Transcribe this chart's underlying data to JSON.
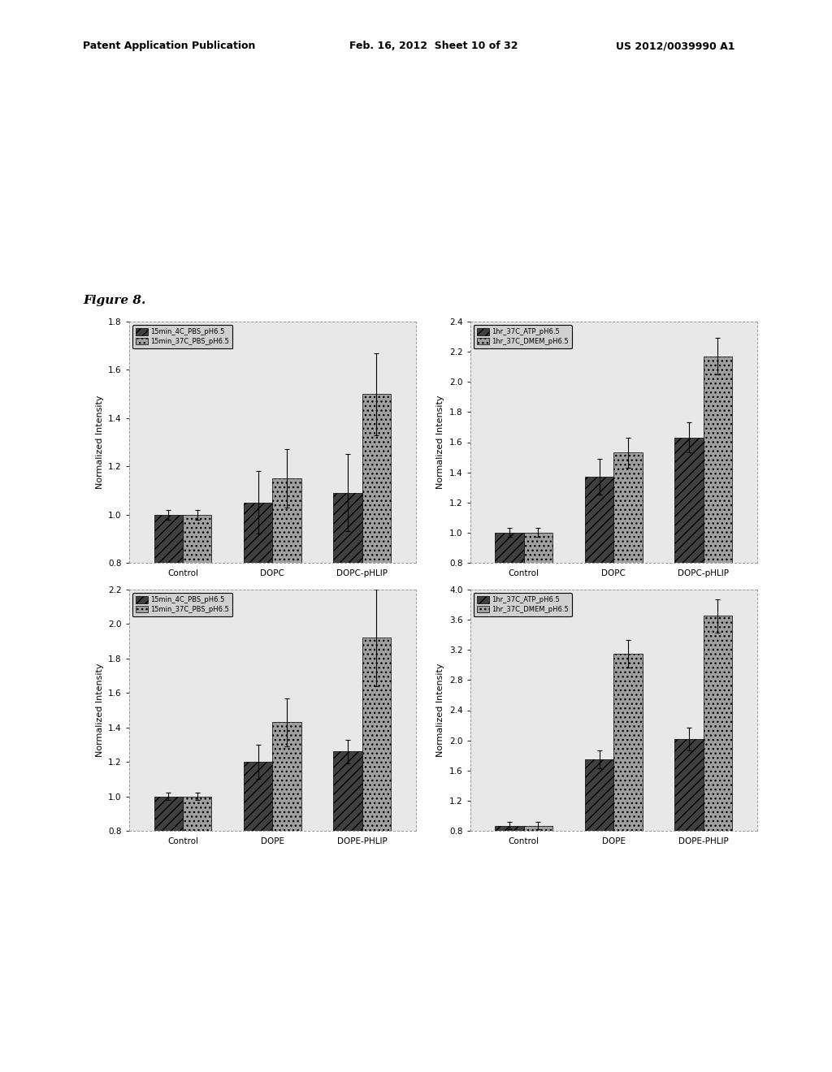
{
  "background_color": "#ffffff",
  "header_left": "Patent Application Publication",
  "header_mid": "Feb. 16, 2012  Sheet 10 of 32",
  "header_right": "US 2012/0039990 A1",
  "figure_label": "Figure 8.",
  "plots": [
    {
      "id": "top_left",
      "categories": [
        "Control",
        "DOPC",
        "DOPC-pHLIP"
      ],
      "series": [
        {
          "label": "15min_4C_PBS_pH6.5",
          "color": "#404040",
          "hatch": "///",
          "values": [
            1.0,
            1.05,
            1.09
          ],
          "errors": [
            0.02,
            0.13,
            0.16
          ]
        },
        {
          "label": "15min_37C_PBS_pH6.5",
          "color": "#a0a0a0",
          "hatch": "...",
          "values": [
            1.0,
            1.15,
            1.5
          ],
          "errors": [
            0.02,
            0.12,
            0.17
          ]
        }
      ],
      "ylabel": "Normalized Intensity",
      "ylim": [
        0.8,
        1.8
      ],
      "yticks": [
        0.8,
        1.0,
        1.2,
        1.4,
        1.6,
        1.8
      ]
    },
    {
      "id": "top_right",
      "categories": [
        "Control",
        "DOPC",
        "DOPC-pHLIP"
      ],
      "series": [
        {
          "label": "1hr_37C_ATP_pH6.5",
          "color": "#404040",
          "hatch": "///",
          "values": [
            1.0,
            1.37,
            1.63
          ],
          "errors": [
            0.03,
            0.12,
            0.1
          ]
        },
        {
          "label": "1hr_37C_DMEM_pH6.5",
          "color": "#a0a0a0",
          "hatch": "...",
          "values": [
            1.0,
            1.53,
            2.17
          ],
          "errors": [
            0.03,
            0.1,
            0.12
          ]
        }
      ],
      "ylabel": "Normalized Intensity",
      "ylim": [
        0.8,
        2.4
      ],
      "yticks": [
        0.8,
        1.0,
        1.2,
        1.4,
        1.6,
        1.8,
        2.0,
        2.2,
        2.4
      ]
    },
    {
      "id": "bottom_left",
      "categories": [
        "Control",
        "DOPE",
        "DOPE-PHLIP"
      ],
      "series": [
        {
          "label": "15min_4C_PBS_pH6.5",
          "color": "#404040",
          "hatch": "///",
          "values": [
            1.0,
            1.2,
            1.26
          ],
          "errors": [
            0.02,
            0.1,
            0.07
          ]
        },
        {
          "label": "15min_37C_PBS_pH6.5",
          "color": "#a0a0a0",
          "hatch": "...",
          "values": [
            1.0,
            1.43,
            1.92
          ],
          "errors": [
            0.02,
            0.14,
            0.28
          ]
        }
      ],
      "ylabel": "Normalized Intensity",
      "ylim": [
        0.8,
        2.2
      ],
      "yticks": [
        0.8,
        1.0,
        1.2,
        1.4,
        1.6,
        1.8,
        2.0,
        2.2
      ]
    },
    {
      "id": "bottom_right",
      "categories": [
        "Control",
        "DOPE",
        "DOPE-PHLIP"
      ],
      "series": [
        {
          "label": "1hr_37C_ATP_pH6.5",
          "color": "#404040",
          "hatch": "///",
          "values": [
            0.87,
            1.75,
            2.02
          ],
          "errors": [
            0.05,
            0.12,
            0.15
          ]
        },
        {
          "label": "1hr_37C_DMEM_pH6.5",
          "color": "#a0a0a0",
          "hatch": "...",
          "values": [
            0.87,
            3.15,
            3.65
          ],
          "errors": [
            0.05,
            0.18,
            0.22
          ]
        }
      ],
      "ylabel": "Normalized Intensity",
      "ylim": [
        0.8,
        4.0
      ],
      "yticks": [
        0.8,
        1.2,
        1.6,
        2.0,
        2.4,
        2.8,
        3.2,
        3.6,
        4.0
      ]
    }
  ]
}
